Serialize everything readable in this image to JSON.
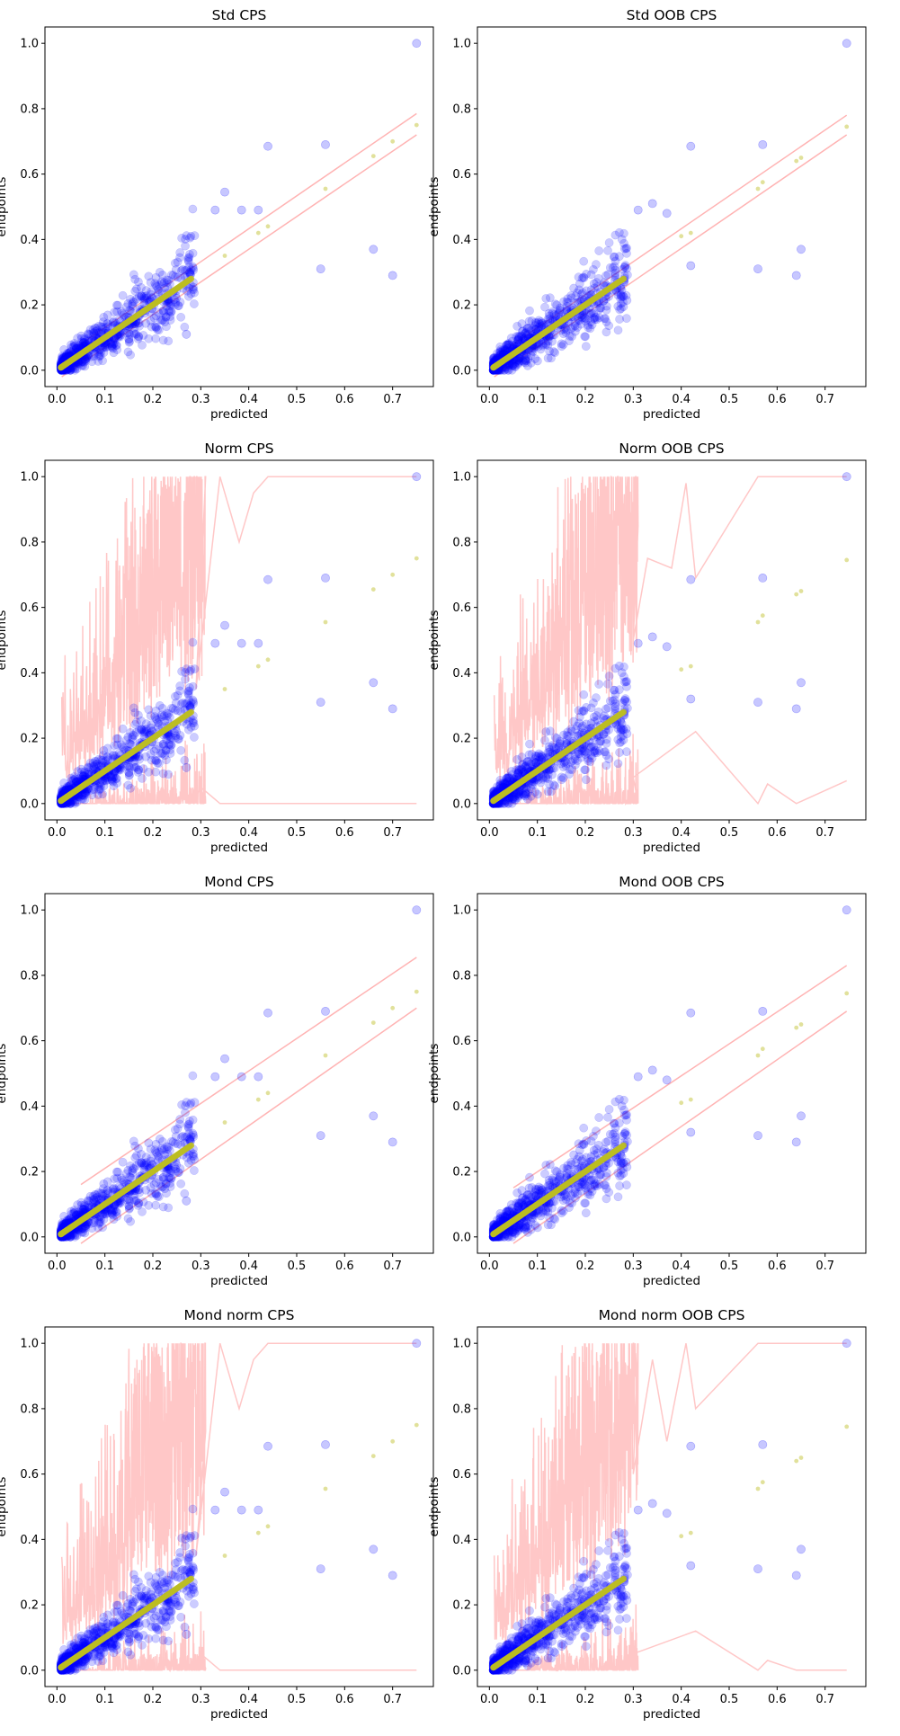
{
  "chart_data": [
    {
      "type": "scatter",
      "title": "Std CPS",
      "xlabel": "predicted",
      "ylabel": "endpoints",
      "xlim": [
        -0.025,
        0.785
      ],
      "ylim": [
        -0.05,
        1.05
      ],
      "xticks": [
        "0.0",
        "0.1",
        "0.2",
        "0.3",
        "0.4",
        "0.5",
        "0.6",
        "0.7"
      ],
      "yticks": [
        "0.0",
        "0.2",
        "0.4",
        "0.6",
        "0.8",
        "1.0"
      ],
      "interval_kind": "linear",
      "interval_bounds": {
        "upper": [
          [
            0.01,
            0.04
          ],
          [
            0.75,
            0.785
          ]
        ],
        "lower": [
          [
            0.01,
            -0.02
          ],
          [
            0.75,
            0.72
          ]
        ]
      },
      "outliers": [
        [
          0.75,
          1.0
        ],
        [
          0.44,
          0.685
        ],
        [
          0.56,
          0.69
        ],
        [
          0.66,
          0.37
        ],
        [
          0.55,
          0.31
        ],
        [
          0.7,
          0.29
        ],
        [
          0.35,
          0.545
        ],
        [
          0.33,
          0.49
        ],
        [
          0.385,
          0.49
        ],
        [
          0.42,
          0.49
        ],
        [
          0.27,
          0.11
        ]
      ],
      "prediction_points": [
        [
          0.56,
          0.555
        ],
        [
          0.66,
          0.655
        ],
        [
          0.7,
          0.7
        ],
        [
          0.75,
          0.75
        ],
        [
          0.44,
          0.44
        ],
        [
          0.42,
          0.42
        ],
        [
          0.35,
          0.35
        ]
      ],
      "colors": {
        "points": "#0000ff",
        "predicted": "#bcbd22",
        "interval": "#ff9999"
      },
      "grid": false
    },
    {
      "type": "scatter",
      "title": "Std OOB CPS",
      "xlabel": "predicted",
      "ylabel": "endpoints",
      "xlim": [
        -0.025,
        0.785
      ],
      "ylim": [
        -0.05,
        1.05
      ],
      "xticks": [
        "0.0",
        "0.1",
        "0.2",
        "0.3",
        "0.4",
        "0.5",
        "0.6",
        "0.7"
      ],
      "yticks": [
        "0.0",
        "0.2",
        "0.4",
        "0.6",
        "0.8",
        "1.0"
      ],
      "interval_kind": "linear",
      "interval_bounds": {
        "upper": [
          [
            0.01,
            0.04
          ],
          [
            0.745,
            0.78
          ]
        ],
        "lower": [
          [
            0.01,
            -0.02
          ],
          [
            0.745,
            0.72
          ]
        ]
      },
      "outliers": [
        [
          0.745,
          1.0
        ],
        [
          0.42,
          0.685
        ],
        [
          0.57,
          0.69
        ],
        [
          0.65,
          0.37
        ],
        [
          0.56,
          0.31
        ],
        [
          0.64,
          0.29
        ],
        [
          0.34,
          0.51
        ],
        [
          0.37,
          0.48
        ],
        [
          0.31,
          0.49
        ],
        [
          0.42,
          0.32
        ]
      ],
      "prediction_points": [
        [
          0.56,
          0.555
        ],
        [
          0.57,
          0.575
        ],
        [
          0.64,
          0.64
        ],
        [
          0.65,
          0.65
        ],
        [
          0.745,
          0.745
        ],
        [
          0.42,
          0.42
        ],
        [
          0.4,
          0.41
        ]
      ],
      "colors": {
        "points": "#0000ff",
        "predicted": "#bcbd22",
        "interval": "#ff9999"
      },
      "grid": false
    },
    {
      "type": "scatter",
      "title": "Norm CPS",
      "xlabel": "predicted",
      "ylabel": "endpoints",
      "xlim": [
        -0.025,
        0.785
      ],
      "ylim": [
        -0.05,
        1.05
      ],
      "xticks": [
        "0.0",
        "0.1",
        "0.2",
        "0.3",
        "0.4",
        "0.5",
        "0.6",
        "0.7"
      ],
      "yticks": [
        "0.0",
        "0.2",
        "0.4",
        "0.6",
        "0.8",
        "1.0"
      ],
      "interval_kind": "normalized",
      "interval_bounds": {
        "upper": [
          [
            0.29,
            0.35
          ],
          [
            0.34,
            1.0
          ],
          [
            0.38,
            0.8
          ],
          [
            0.41,
            0.95
          ],
          [
            0.44,
            1.0
          ],
          [
            0.75,
            1.0
          ]
        ],
        "lower": [
          [
            0.3,
            0.05
          ],
          [
            0.34,
            0.0
          ],
          [
            0.44,
            0.0
          ],
          [
            0.75,
            0.0
          ]
        ]
      },
      "outliers": [
        [
          0.75,
          1.0
        ],
        [
          0.44,
          0.685
        ],
        [
          0.56,
          0.69
        ],
        [
          0.66,
          0.37
        ],
        [
          0.55,
          0.31
        ],
        [
          0.7,
          0.29
        ],
        [
          0.35,
          0.545
        ],
        [
          0.33,
          0.49
        ],
        [
          0.385,
          0.49
        ],
        [
          0.42,
          0.49
        ],
        [
          0.27,
          0.11
        ]
      ],
      "prediction_points": [
        [
          0.56,
          0.555
        ],
        [
          0.66,
          0.655
        ],
        [
          0.7,
          0.7
        ],
        [
          0.75,
          0.75
        ],
        [
          0.44,
          0.44
        ],
        [
          0.42,
          0.42
        ],
        [
          0.35,
          0.35
        ]
      ],
      "colors": {
        "points": "#0000ff",
        "predicted": "#bcbd22",
        "interval": "#ff9999"
      },
      "grid": false
    },
    {
      "type": "scatter",
      "title": "Norm OOB CPS",
      "xlabel": "predicted",
      "ylabel": "endpoints",
      "xlim": [
        -0.025,
        0.785
      ],
      "ylim": [
        -0.05,
        1.05
      ],
      "xticks": [
        "0.0",
        "0.1",
        "0.2",
        "0.3",
        "0.4",
        "0.5",
        "0.6",
        "0.7"
      ],
      "yticks": [
        "0.0",
        "0.2",
        "0.4",
        "0.6",
        "0.8",
        "1.0"
      ],
      "interval_kind": "normalized",
      "interval_bounds": {
        "upper": [
          [
            0.3,
            0.5
          ],
          [
            0.33,
            0.75
          ],
          [
            0.38,
            0.72
          ],
          [
            0.41,
            0.98
          ],
          [
            0.43,
            0.69
          ],
          [
            0.56,
            1.0
          ],
          [
            0.745,
            1.0
          ]
        ],
        "lower": [
          [
            0.3,
            0.08
          ],
          [
            0.43,
            0.22
          ],
          [
            0.56,
            0.0
          ],
          [
            0.58,
            0.06
          ],
          [
            0.64,
            0.0
          ],
          [
            0.745,
            0.07
          ]
        ]
      },
      "outliers": [
        [
          0.745,
          1.0
        ],
        [
          0.42,
          0.685
        ],
        [
          0.57,
          0.69
        ],
        [
          0.65,
          0.37
        ],
        [
          0.56,
          0.31
        ],
        [
          0.64,
          0.29
        ],
        [
          0.34,
          0.51
        ],
        [
          0.37,
          0.48
        ],
        [
          0.31,
          0.49
        ],
        [
          0.42,
          0.32
        ]
      ],
      "prediction_points": [
        [
          0.56,
          0.555
        ],
        [
          0.57,
          0.575
        ],
        [
          0.64,
          0.64
        ],
        [
          0.65,
          0.65
        ],
        [
          0.745,
          0.745
        ],
        [
          0.42,
          0.42
        ],
        [
          0.4,
          0.41
        ]
      ],
      "colors": {
        "points": "#0000ff",
        "predicted": "#bcbd22",
        "interval": "#ff9999"
      },
      "grid": false
    },
    {
      "type": "scatter",
      "title": "Mond CPS",
      "xlabel": "predicted",
      "ylabel": "endpoints",
      "xlim": [
        -0.025,
        0.785
      ],
      "ylim": [
        -0.05,
        1.05
      ],
      "xticks": [
        "0.0",
        "0.1",
        "0.2",
        "0.3",
        "0.4",
        "0.5",
        "0.6",
        "0.7"
      ],
      "yticks": [
        "0.0",
        "0.2",
        "0.4",
        "0.6",
        "0.8",
        "1.0"
      ],
      "interval_kind": "linear",
      "interval_bounds": {
        "upper": [
          [
            0.05,
            0.16
          ],
          [
            0.75,
            0.855
          ]
        ],
        "lower": [
          [
            0.05,
            -0.02
          ],
          [
            0.75,
            0.7
          ]
        ]
      },
      "outliers": [
        [
          0.75,
          1.0
        ],
        [
          0.44,
          0.685
        ],
        [
          0.56,
          0.69
        ],
        [
          0.66,
          0.37
        ],
        [
          0.55,
          0.31
        ],
        [
          0.7,
          0.29
        ],
        [
          0.35,
          0.545
        ],
        [
          0.33,
          0.49
        ],
        [
          0.385,
          0.49
        ],
        [
          0.42,
          0.49
        ],
        [
          0.27,
          0.11
        ]
      ],
      "prediction_points": [
        [
          0.56,
          0.555
        ],
        [
          0.66,
          0.655
        ],
        [
          0.7,
          0.7
        ],
        [
          0.75,
          0.75
        ],
        [
          0.44,
          0.44
        ],
        [
          0.42,
          0.42
        ],
        [
          0.35,
          0.35
        ]
      ],
      "colors": {
        "points": "#0000ff",
        "predicted": "#bcbd22",
        "interval": "#ff9999"
      },
      "grid": false
    },
    {
      "type": "scatter",
      "title": "Mond OOB CPS",
      "xlabel": "predicted",
      "ylabel": "endpoints",
      "xlim": [
        -0.025,
        0.785
      ],
      "ylim": [
        -0.05,
        1.05
      ],
      "xticks": [
        "0.0",
        "0.1",
        "0.2",
        "0.3",
        "0.4",
        "0.5",
        "0.6",
        "0.7"
      ],
      "yticks": [
        "0.0",
        "0.2",
        "0.4",
        "0.6",
        "0.8",
        "1.0"
      ],
      "interval_kind": "linear",
      "interval_bounds": {
        "upper": [
          [
            0.05,
            0.15
          ],
          [
            0.745,
            0.83
          ]
        ],
        "lower": [
          [
            0.05,
            -0.02
          ],
          [
            0.745,
            0.69
          ]
        ]
      },
      "outliers": [
        [
          0.745,
          1.0
        ],
        [
          0.42,
          0.685
        ],
        [
          0.57,
          0.69
        ],
        [
          0.65,
          0.37
        ],
        [
          0.56,
          0.31
        ],
        [
          0.64,
          0.29
        ],
        [
          0.34,
          0.51
        ],
        [
          0.37,
          0.48
        ],
        [
          0.31,
          0.49
        ],
        [
          0.42,
          0.32
        ]
      ],
      "prediction_points": [
        [
          0.56,
          0.555
        ],
        [
          0.57,
          0.575
        ],
        [
          0.64,
          0.64
        ],
        [
          0.65,
          0.65
        ],
        [
          0.745,
          0.745
        ],
        [
          0.42,
          0.42
        ],
        [
          0.4,
          0.41
        ]
      ],
      "colors": {
        "points": "#0000ff",
        "predicted": "#bcbd22",
        "interval": "#ff9999"
      },
      "grid": false
    },
    {
      "type": "scatter",
      "title": "Mond norm CPS",
      "xlabel": "predicted",
      "ylabel": "endpoints",
      "xlim": [
        -0.025,
        0.785
      ],
      "ylim": [
        -0.05,
        1.05
      ],
      "xticks": [
        "0.0",
        "0.1",
        "0.2",
        "0.3",
        "0.4",
        "0.5",
        "0.6",
        "0.7"
      ],
      "yticks": [
        "0.0",
        "0.2",
        "0.4",
        "0.6",
        "0.8",
        "1.0"
      ],
      "interval_kind": "normalized",
      "interval_bounds": {
        "upper": [
          [
            0.29,
            0.35
          ],
          [
            0.34,
            1.0
          ],
          [
            0.38,
            0.8
          ],
          [
            0.41,
            0.95
          ],
          [
            0.44,
            1.0
          ],
          [
            0.75,
            1.0
          ]
        ],
        "lower": [
          [
            0.3,
            0.05
          ],
          [
            0.34,
            0.0
          ],
          [
            0.44,
            0.0
          ],
          [
            0.75,
            0.0
          ]
        ]
      },
      "outliers": [
        [
          0.75,
          1.0
        ],
        [
          0.44,
          0.685
        ],
        [
          0.56,
          0.69
        ],
        [
          0.66,
          0.37
        ],
        [
          0.55,
          0.31
        ],
        [
          0.7,
          0.29
        ],
        [
          0.35,
          0.545
        ],
        [
          0.33,
          0.49
        ],
        [
          0.385,
          0.49
        ],
        [
          0.42,
          0.49
        ],
        [
          0.27,
          0.11
        ]
      ],
      "prediction_points": [
        [
          0.56,
          0.555
        ],
        [
          0.66,
          0.655
        ],
        [
          0.7,
          0.7
        ],
        [
          0.75,
          0.75
        ],
        [
          0.44,
          0.44
        ],
        [
          0.42,
          0.42
        ],
        [
          0.35,
          0.35
        ]
      ],
      "colors": {
        "points": "#0000ff",
        "predicted": "#bcbd22",
        "interval": "#ff9999"
      },
      "grid": false
    },
    {
      "type": "scatter",
      "title": "Mond norm OOB CPS",
      "xlabel": "predicted",
      "ylabel": "endpoints",
      "xlim": [
        -0.025,
        0.785
      ],
      "ylim": [
        -0.05,
        1.05
      ],
      "xticks": [
        "0.0",
        "0.1",
        "0.2",
        "0.3",
        "0.4",
        "0.5",
        "0.6",
        "0.7"
      ],
      "yticks": [
        "0.0",
        "0.2",
        "0.4",
        "0.6",
        "0.8",
        "1.0"
      ],
      "interval_kind": "normalized",
      "interval_bounds": {
        "upper": [
          [
            0.3,
            0.6
          ],
          [
            0.34,
            0.95
          ],
          [
            0.37,
            0.7
          ],
          [
            0.41,
            1.0
          ],
          [
            0.43,
            0.8
          ],
          [
            0.56,
            1.0
          ],
          [
            0.745,
            1.0
          ]
        ],
        "lower": [
          [
            0.3,
            0.05
          ],
          [
            0.43,
            0.12
          ],
          [
            0.56,
            0.0
          ],
          [
            0.58,
            0.03
          ],
          [
            0.64,
            0.0
          ],
          [
            0.745,
            0.0
          ]
        ]
      },
      "outliers": [
        [
          0.745,
          1.0
        ],
        [
          0.42,
          0.685
        ],
        [
          0.57,
          0.69
        ],
        [
          0.65,
          0.37
        ],
        [
          0.56,
          0.31
        ],
        [
          0.64,
          0.29
        ],
        [
          0.34,
          0.51
        ],
        [
          0.37,
          0.48
        ],
        [
          0.31,
          0.49
        ],
        [
          0.42,
          0.32
        ]
      ],
      "prediction_points": [
        [
          0.56,
          0.555
        ],
        [
          0.57,
          0.575
        ],
        [
          0.64,
          0.64
        ],
        [
          0.65,
          0.65
        ],
        [
          0.745,
          0.745
        ],
        [
          0.42,
          0.42
        ],
        [
          0.4,
          0.41
        ]
      ],
      "colors": {
        "points": "#0000ff",
        "predicted": "#bcbd22",
        "interval": "#ff9999"
      },
      "grid": false
    }
  ]
}
